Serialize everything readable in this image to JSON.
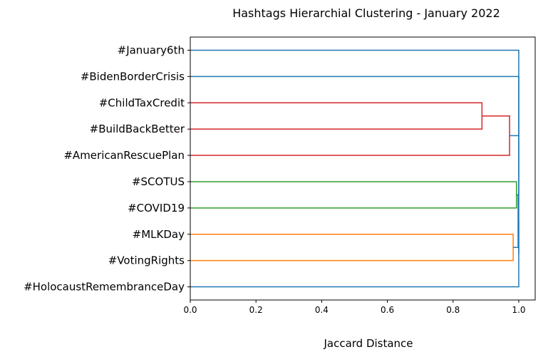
{
  "chart_data": {
    "type": "dendrogram",
    "orientation": "horizontal",
    "title": "Hashtags Hierarchial Clustering - January 2022",
    "xlabel": "Jaccard Distance",
    "xlim": [
      0,
      1.05
    ],
    "xticks": [
      0.0,
      0.2,
      0.4,
      0.6,
      0.8,
      1.0
    ],
    "xtick_labels": [
      "0.0",
      "0.2",
      "0.4",
      "0.6",
      "0.8",
      "1.0"
    ],
    "grid": false,
    "leaves": [
      "#January6th",
      "#BidenBorderCrisis",
      "#ChildTaxCredit",
      "#BuildBackBetter",
      "#AmericanRescuePlan",
      "#SCOTUS",
      "#COVID19",
      "#MLKDay",
      "#VotingRights",
      "#HolocaustRemembranceDay"
    ],
    "colors": {
      "cluster_red": "#d62728",
      "cluster_green": "#2ca02c",
      "cluster_orange": "#ff7f0e",
      "above_threshold": "#1f77b4"
    },
    "merges": [
      {
        "id": "m1",
        "children": [
          "#ChildTaxCredit",
          "#BuildBackBetter"
        ],
        "distance": 0.888,
        "color": "cluster_red"
      },
      {
        "id": "m2",
        "children": [
          "m1",
          "#AmericanRescuePlan"
        ],
        "distance": 0.972,
        "color": "cluster_red"
      },
      {
        "id": "m3",
        "children": [
          "#SCOTUS",
          "#COVID19"
        ],
        "distance": 0.993,
        "color": "cluster_green"
      },
      {
        "id": "m4",
        "children": [
          "#MLKDay",
          "#VotingRights"
        ],
        "distance": 0.983,
        "color": "cluster_orange"
      },
      {
        "id": "m5",
        "children": [
          "m3",
          "m4"
        ],
        "distance": 0.998,
        "color": "above_threshold"
      },
      {
        "id": "m6",
        "children": [
          "m5",
          "#HolocaustRemembranceDay"
        ],
        "distance": 1.0,
        "color": "above_threshold"
      },
      {
        "id": "m7",
        "children": [
          "m2",
          "m6"
        ],
        "distance": 1.0,
        "color": "above_threshold"
      },
      {
        "id": "m8",
        "children": [
          "#BidenBorderCrisis",
          "m7"
        ],
        "distance": 1.0,
        "color": "above_threshold"
      },
      {
        "id": "m9",
        "children": [
          "#January6th",
          "m8"
        ],
        "distance": 1.0,
        "color": "above_threshold"
      }
    ]
  }
}
